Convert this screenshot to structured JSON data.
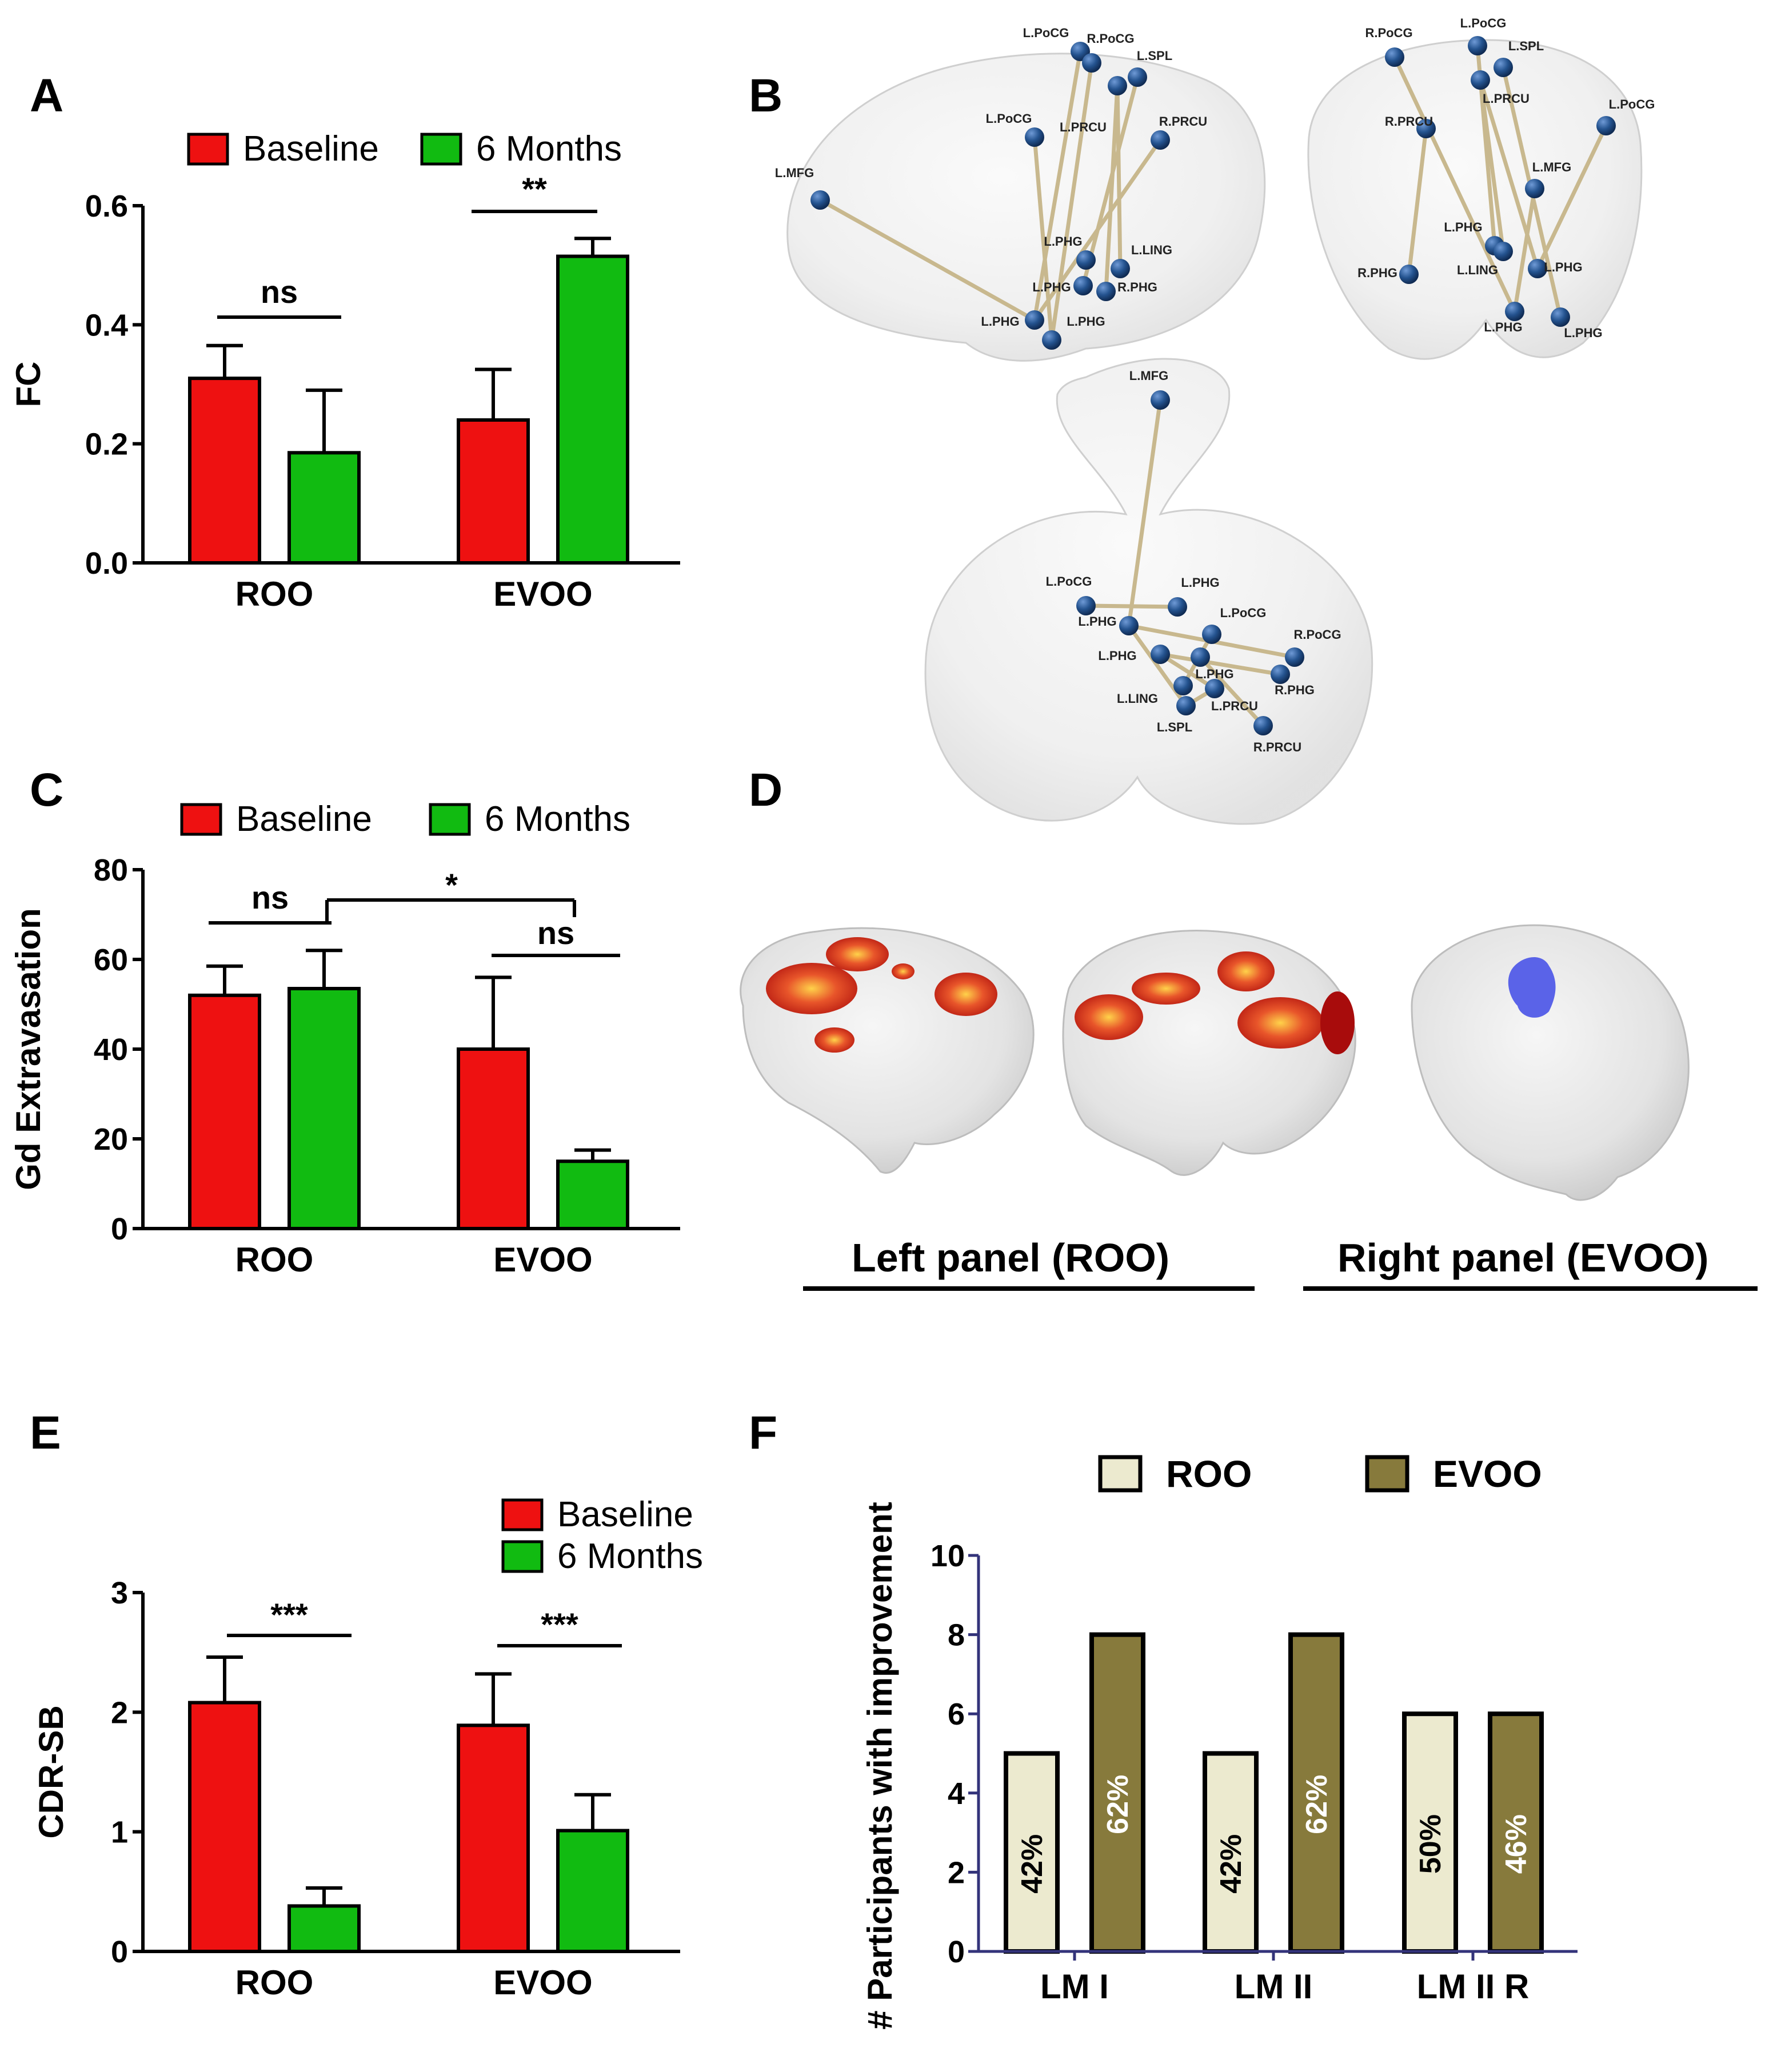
{
  "colors": {
    "baseline": "#ee1111",
    "months6": "#11bb11",
    "roo": "#eceacf",
    "evoo": "#877a3c",
    "axis": "#33337a",
    "node": "#1f4e8c",
    "edge": "#c8b88e"
  },
  "panel_labels": {
    "a": "A",
    "b": "B",
    "c": "C",
    "d": "D",
    "e": "E",
    "f": "F"
  },
  "panel_d": {
    "left_caption": "Left panel (ROO)",
    "right_caption": "Right panel (EVOO)"
  },
  "networks": {
    "sagittal": [
      "L.PoCG",
      "R.PoCG",
      "L.SPL",
      "L.PRCU",
      "R.PRCU",
      "L.PoCG",
      "L.MFG",
      "L.PHG",
      "L.LING",
      "L.PHG",
      "R.PHG",
      "L.PHG",
      "L.PHG"
    ],
    "coronal": [
      "R.PoCG",
      "L.PoCG",
      "L.SPL",
      "L.PRCU",
      "R.PRCU",
      "L.PoCG",
      "L.MFG",
      "L.PHG",
      "L.LING",
      "L.PHG",
      "R.PHG",
      "L.PHG",
      "L.PHG"
    ],
    "axial": [
      "L.MFG",
      "L.PoCG",
      "L.PHG",
      "L.PHG",
      "L.PoCG",
      "R.PoCG",
      "L.PHG",
      "L.PHG",
      "R.PHG",
      "L.LING",
      "L.PRCU",
      "L.SPL",
      "R.PRCU"
    ]
  },
  "chart_data": [
    {
      "id": "A",
      "type": "bar",
      "ylabel": "FC",
      "xlabel": "",
      "categories": [
        "ROO",
        "EVOO"
      ],
      "ylim": [
        0,
        0.6
      ],
      "yticks": [
        "0.0",
        "0.2",
        "0.4",
        "0.6"
      ],
      "series": [
        {
          "name": "Baseline",
          "values": [
            0.31,
            0.24
          ],
          "errors": [
            0.055,
            0.085
          ]
        },
        {
          "name": "6 Months",
          "values": [
            0.185,
            0.515
          ],
          "errors": [
            0.105,
            0.03
          ]
        }
      ],
      "significance": [
        "ns",
        "**"
      ]
    },
    {
      "id": "C",
      "type": "bar",
      "ylabel": "Gd Extravasation",
      "xlabel": "",
      "categories": [
        "ROO",
        "EVOO"
      ],
      "ylim": [
        0,
        80
      ],
      "yticks": [
        "0",
        "20",
        "40",
        "60",
        "80"
      ],
      "series": [
        {
          "name": "Baseline",
          "values": [
            52,
            40
          ],
          "errors": [
            6.5,
            16
          ]
        },
        {
          "name": "6 Months",
          "values": [
            53.5,
            15
          ],
          "errors": [
            8.5,
            2.5
          ]
        }
      ],
      "significance": [
        "ns",
        "ns",
        "*"
      ]
    },
    {
      "id": "E",
      "type": "bar",
      "ylabel": "CDR-SB",
      "xlabel": "",
      "categories": [
        "ROO",
        "EVOO"
      ],
      "ylim": [
        0,
        3
      ],
      "yticks": [
        "0",
        "1",
        "2",
        "3"
      ],
      "series": [
        {
          "name": "Baseline",
          "values": [
            2.08,
            1.89
          ],
          "errors": [
            0.38,
            0.43
          ]
        },
        {
          "name": "6 Months",
          "values": [
            0.38,
            1.01
          ],
          "errors": [
            0.15,
            0.3
          ]
        }
      ],
      "significance": [
        "***",
        "***"
      ]
    },
    {
      "id": "F",
      "type": "bar",
      "ylabel": "# Participants with improvement",
      "xlabel": "",
      "categories": [
        "LM I",
        "LM II",
        "LM II R"
      ],
      "ylim": [
        0,
        10
      ],
      "yticks": [
        "0",
        "2",
        "4",
        "6",
        "8",
        "10"
      ],
      "series": [
        {
          "name": "ROO",
          "values": [
            5,
            5,
            6
          ],
          "labels": [
            "42%",
            "42%",
            "50%"
          ]
        },
        {
          "name": "EVOO",
          "values": [
            8,
            8,
            6
          ],
          "labels": [
            "62%",
            "62%",
            "46%"
          ]
        }
      ]
    }
  ]
}
